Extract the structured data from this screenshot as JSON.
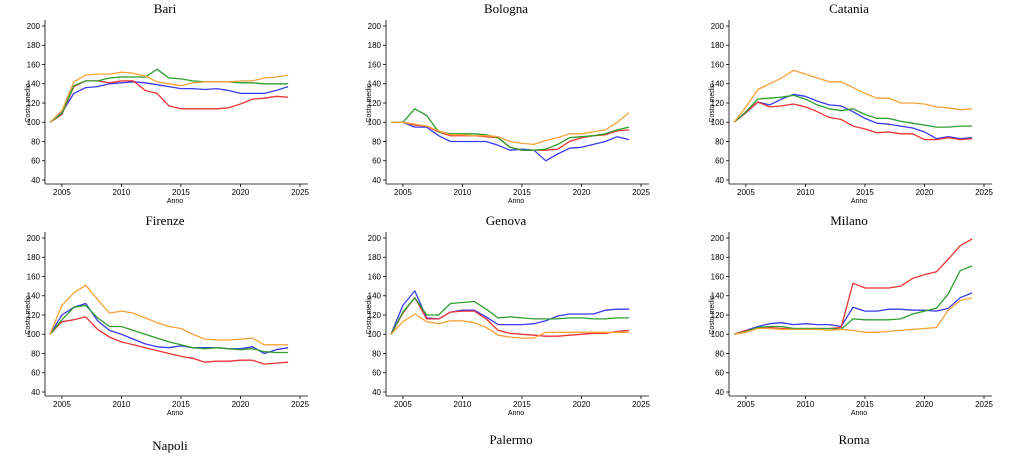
{
  "colors": {
    "blue": "#3a3af0",
    "red": "#ee3333",
    "green": "#2e9e2e",
    "orange": "#f5a23a"
  },
  "chart_data": [
    {
      "type": "line",
      "title": "Bari",
      "xlabel": "Anno",
      "ylabel": "Costo medio",
      "xlim": [
        2004,
        2025
      ],
      "ylim": [
        40,
        200
      ],
      "xticks": [
        2005,
        2010,
        2015,
        2020,
        2025
      ],
      "yticks": [
        40,
        60,
        80,
        100,
        120,
        140,
        160,
        180,
        200
      ],
      "x": [
        2004,
        2005,
        2006,
        2007,
        2008,
        2009,
        2010,
        2011,
        2012,
        2013,
        2014,
        2015,
        2016,
        2017,
        2018,
        2019,
        2020,
        2021,
        2022,
        2023,
        2024
      ],
      "series": [
        {
          "color": "#3a3af0",
          "values": [
            100,
            110,
            130,
            136,
            137,
            140,
            141,
            142,
            141,
            139,
            137,
            135,
            135,
            134,
            135,
            133,
            130,
            130,
            130,
            133,
            137
          ]
        },
        {
          "color": "#ee3333",
          "values": [
            100,
            108,
            137,
            143,
            143,
            141,
            143,
            143,
            133,
            130,
            117,
            114,
            114,
            114,
            114,
            115,
            119,
            124,
            125,
            127,
            126
          ]
        },
        {
          "color": "#2e9e2e",
          "values": [
            100,
            109,
            138,
            143,
            143,
            146,
            147,
            147,
            147,
            155,
            146,
            145,
            143,
            142,
            142,
            142,
            141,
            141,
            140,
            140,
            140
          ]
        },
        {
          "color": "#f5a23a",
          "values": [
            100,
            112,
            142,
            149,
            150,
            150,
            152,
            151,
            148,
            142,
            140,
            138,
            141,
            142,
            142,
            142,
            143,
            143,
            146,
            147,
            149
          ]
        }
      ]
    },
    {
      "type": "line",
      "title": "Bologna",
      "xlabel": "Anno",
      "ylabel": "Costo medio",
      "xlim": [
        2004,
        2025
      ],
      "ylim": [
        40,
        200
      ],
      "xticks": [
        2005,
        2010,
        2015,
        2020,
        2025
      ],
      "yticks": [
        40,
        60,
        80,
        100,
        120,
        140,
        160,
        180,
        200
      ],
      "x": [
        2004,
        2005,
        2006,
        2007,
        2008,
        2009,
        2010,
        2011,
        2012,
        2013,
        2014,
        2015,
        2016,
        2017,
        2018,
        2019,
        2020,
        2021,
        2022,
        2023,
        2024
      ],
      "series": [
        {
          "color": "#3a3af0",
          "values": [
            100,
            100,
            95,
            95,
            86,
            80,
            80,
            80,
            80,
            76,
            71,
            72,
            71,
            60,
            67,
            73,
            74,
            77,
            80,
            85,
            82
          ]
        },
        {
          "color": "#ee3333",
          "values": [
            100,
            100,
            97,
            96,
            90,
            86,
            86,
            86,
            85,
            84,
            74,
            71,
            71,
            71,
            72,
            80,
            84,
            86,
            87,
            91,
            92
          ]
        },
        {
          "color": "#2e9e2e",
          "values": [
            100,
            100,
            114,
            107,
            90,
            88,
            88,
            88,
            87,
            84,
            74,
            71,
            71,
            72,
            77,
            84,
            85,
            86,
            88,
            92,
            95
          ]
        },
        {
          "color": "#f5a23a",
          "values": [
            100,
            100,
            98,
            96,
            91,
            87,
            87,
            86,
            86,
            85,
            80,
            78,
            77,
            81,
            84,
            88,
            88,
            90,
            92,
            100,
            110
          ]
        }
      ]
    },
    {
      "type": "line",
      "title": "Catania",
      "xlabel": "Anno",
      "ylabel": "Costo medio",
      "xlim": [
        2004,
        2025
      ],
      "ylim": [
        40,
        200
      ],
      "xticks": [
        2005,
        2010,
        2015,
        2020,
        2025
      ],
      "yticks": [
        40,
        60,
        80,
        100,
        120,
        140,
        160,
        180,
        200
      ],
      "x": [
        2004,
        2005,
        2006,
        2007,
        2008,
        2009,
        2010,
        2011,
        2012,
        2013,
        2014,
        2015,
        2016,
        2017,
        2018,
        2019,
        2020,
        2021,
        2022,
        2023,
        2024
      ],
      "series": [
        {
          "color": "#3a3af0",
          "values": [
            100,
            110,
            121,
            118,
            124,
            129,
            127,
            122,
            118,
            117,
            111,
            104,
            99,
            98,
            96,
            94,
            90,
            83,
            85,
            83,
            84
          ]
        },
        {
          "color": "#ee3333",
          "values": [
            100,
            110,
            121,
            116,
            117,
            119,
            116,
            111,
            105,
            103,
            96,
            93,
            89,
            90,
            88,
            88,
            82,
            82,
            84,
            82,
            83
          ]
        },
        {
          "color": "#2e9e2e",
          "values": [
            100,
            111,
            124,
            125,
            126,
            128,
            124,
            118,
            114,
            112,
            114,
            108,
            104,
            104,
            101,
            99,
            97,
            95,
            95,
            96,
            96
          ]
        },
        {
          "color": "#f5a23a",
          "values": [
            100,
            116,
            134,
            140,
            146,
            154,
            150,
            146,
            142,
            142,
            136,
            130,
            125,
            125,
            120,
            120,
            119,
            116,
            115,
            113,
            114
          ]
        }
      ]
    },
    {
      "type": "line",
      "title": "Firenze",
      "xlabel": "Anno",
      "ylabel": "Costo medio",
      "xlim": [
        2004,
        2025
      ],
      "ylim": [
        40,
        200
      ],
      "xticks": [
        2005,
        2010,
        2015,
        2020,
        2025
      ],
      "yticks": [
        40,
        60,
        80,
        100,
        120,
        140,
        160,
        180,
        200
      ],
      "x": [
        2004,
        2005,
        2006,
        2007,
        2008,
        2009,
        2010,
        2011,
        2012,
        2013,
        2014,
        2015,
        2016,
        2017,
        2018,
        2019,
        2020,
        2021,
        2022,
        2023,
        2024
      ],
      "series": [
        {
          "color": "#3a3af0",
          "values": [
            100,
            120,
            128,
            132,
            114,
            104,
            100,
            95,
            90,
            87,
            86,
            88,
            86,
            86,
            86,
            85,
            85,
            87,
            80,
            84,
            86
          ]
        },
        {
          "color": "#ee3333",
          "values": [
            100,
            113,
            115,
            118,
            105,
            97,
            92,
            89,
            86,
            83,
            80,
            77,
            75,
            71,
            72,
            72,
            73,
            73,
            69,
            70,
            71
          ]
        },
        {
          "color": "#2e9e2e",
          "values": [
            100,
            115,
            128,
            130,
            117,
            108,
            108,
            104,
            100,
            96,
            92,
            89,
            86,
            85,
            86,
            85,
            84,
            85,
            82,
            81,
            81
          ]
        },
        {
          "color": "#f5a23a",
          "values": [
            100,
            130,
            143,
            151,
            136,
            122,
            124,
            122,
            117,
            112,
            108,
            106,
            100,
            95,
            94,
            94,
            95,
            96,
            89,
            89,
            89
          ]
        }
      ]
    },
    {
      "type": "line",
      "title": "Genova",
      "xlabel": "Anno",
      "ylabel": "Costo medio",
      "xlim": [
        2004,
        2025
      ],
      "ylim": [
        40,
        200
      ],
      "xticks": [
        2005,
        2010,
        2015,
        2020,
        2025
      ],
      "yticks": [
        40,
        60,
        80,
        100,
        120,
        140,
        160,
        180,
        200
      ],
      "x": [
        2004,
        2005,
        2006,
        2007,
        2008,
        2009,
        2010,
        2011,
        2012,
        2013,
        2014,
        2015,
        2016,
        2017,
        2018,
        2019,
        2020,
        2021,
        2022,
        2023,
        2024
      ],
      "series": [
        {
          "color": "#3a3af0",
          "values": [
            100,
            130,
            145,
            117,
            116,
            123,
            125,
            125,
            118,
            110,
            110,
            110,
            111,
            114,
            119,
            121,
            121,
            121,
            125,
            126,
            126
          ]
        },
        {
          "color": "#ee3333",
          "values": [
            100,
            122,
            138,
            116,
            116,
            123,
            124,
            124,
            116,
            104,
            101,
            100,
            99,
            98,
            98,
            99,
            100,
            101,
            101,
            103,
            104
          ]
        },
        {
          "color": "#2e9e2e",
          "values": [
            100,
            123,
            138,
            120,
            120,
            132,
            133,
            134,
            126,
            117,
            118,
            117,
            116,
            116,
            116,
            117,
            117,
            116,
            116,
            117,
            117
          ]
        },
        {
          "color": "#f5a23a",
          "values": [
            100,
            113,
            121,
            113,
            111,
            114,
            114,
            112,
            107,
            99,
            97,
            96,
            96,
            102,
            102,
            102,
            102,
            102,
            102,
            102,
            102
          ]
        }
      ]
    },
    {
      "type": "line",
      "title": "Milano",
      "xlabel": "Anno",
      "ylabel": "Costo medio",
      "xlim": [
        2004,
        2025
      ],
      "ylim": [
        40,
        200
      ],
      "xticks": [
        2005,
        2010,
        2015,
        2020,
        2025
      ],
      "yticks": [
        40,
        60,
        80,
        100,
        120,
        140,
        160,
        180,
        200
      ],
      "x": [
        2004,
        2005,
        2006,
        2007,
        2008,
        2009,
        2010,
        2011,
        2012,
        2013,
        2014,
        2015,
        2016,
        2017,
        2018,
        2019,
        2020,
        2021,
        2022,
        2023,
        2024
      ],
      "series": [
        {
          "color": "#3a3af0",
          "values": [
            100,
            104,
            108,
            111,
            112,
            110,
            111,
            110,
            110,
            108,
            128,
            124,
            124,
            126,
            126,
            125,
            125,
            124,
            127,
            138,
            143
          ]
        },
        {
          "color": "#ee3333",
          "values": [
            100,
            104,
            106,
            107,
            106,
            106,
            106,
            106,
            106,
            107,
            153,
            148,
            148,
            148,
            150,
            158,
            162,
            165,
            178,
            192,
            199
          ]
        },
        {
          "color": "#2e9e2e",
          "values": [
            100,
            103,
            107,
            108,
            108,
            106,
            106,
            106,
            106,
            105,
            116,
            115,
            115,
            115,
            116,
            121,
            124,
            127,
            142,
            166,
            171
          ]
        },
        {
          "color": "#f5a23a",
          "values": [
            100,
            102,
            106,
            106,
            105,
            105,
            105,
            105,
            104,
            105,
            104,
            102,
            102,
            103,
            104,
            105,
            106,
            107,
            125,
            135,
            138
          ]
        }
      ]
    }
  ],
  "bottom_titles": [
    "Napoli",
    "Palermo",
    "Roma"
  ]
}
